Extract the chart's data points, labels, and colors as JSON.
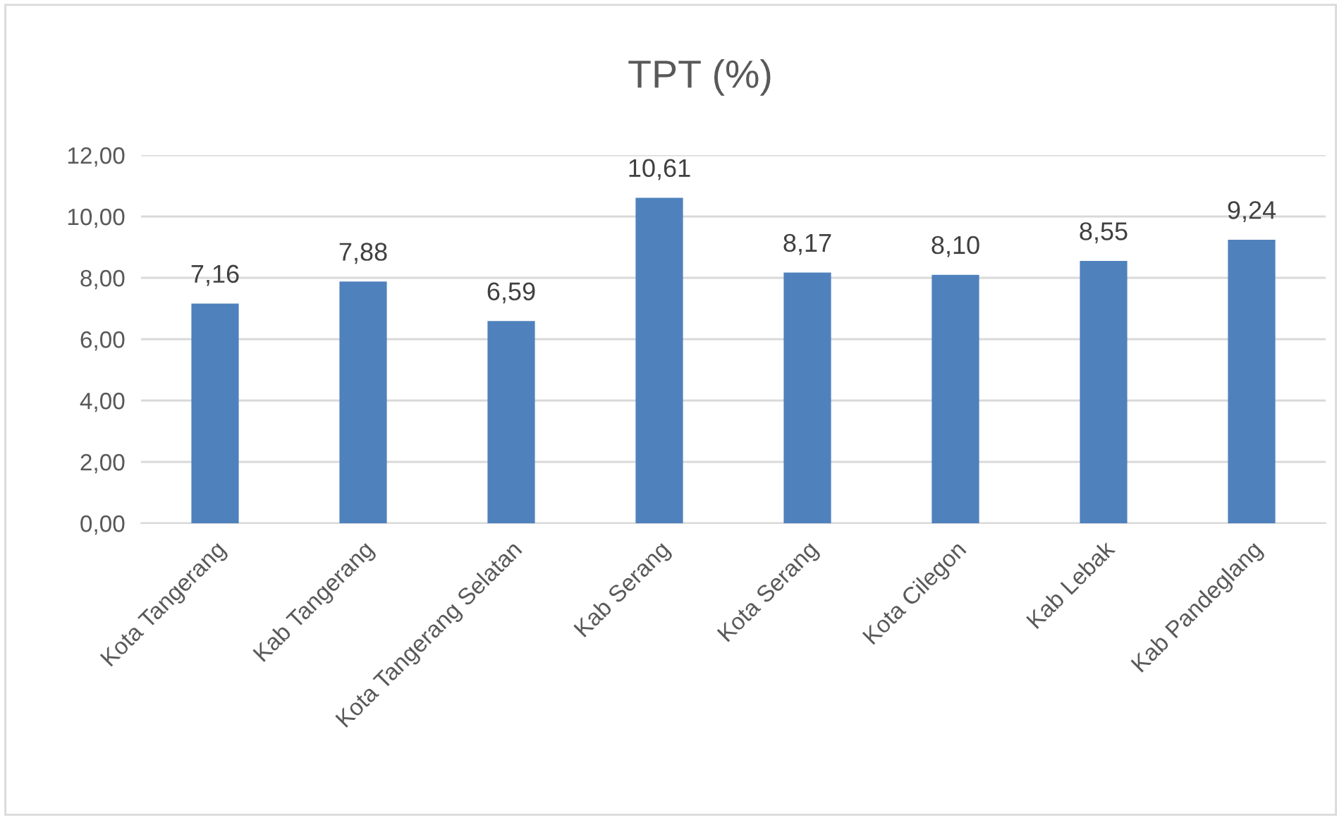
{
  "chart_data": {
    "type": "bar",
    "title": "TPT (%)",
    "categories": [
      "Kota Tangerang",
      "Kab Tangerang",
      "Kota Tangerang Selatan",
      "Kab Serang",
      "Kota Serang",
      "Kota Cilegon",
      "Kab Lebak",
      "Kab Pandeglang"
    ],
    "values": [
      7.16,
      7.88,
      6.59,
      10.61,
      8.17,
      8.1,
      8.55,
      9.24
    ],
    "value_labels": [
      "7,16",
      "7,88",
      "6,59",
      "10,61",
      "8,17",
      "8,10",
      "8,55",
      "9,24"
    ],
    "color": "#4f81bd",
    "ylim": [
      0,
      12
    ],
    "yticks": [
      {
        "value": 0,
        "label": "0,00"
      },
      {
        "value": 2,
        "label": "2,00"
      },
      {
        "value": 4,
        "label": "4,00"
      },
      {
        "value": 6,
        "label": "6,00"
      },
      {
        "value": 8,
        "label": "8,00"
      },
      {
        "value": 10,
        "label": "10,00"
      },
      {
        "value": 12,
        "label": "12,00"
      }
    ],
    "grid": "y",
    "legend": false
  }
}
